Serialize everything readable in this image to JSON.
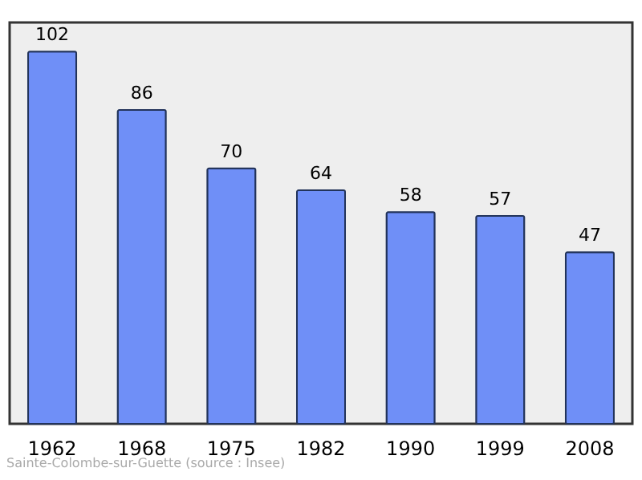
{
  "chart_data": {
    "type": "bar",
    "categories": [
      "1962",
      "1968",
      "1975",
      "1982",
      "1990",
      "1999",
      "2008"
    ],
    "values": [
      102,
      86,
      70,
      64,
      58,
      57,
      47
    ],
    "color": "#6f8ff7",
    "data_labels": true,
    "annotations": [
      "Sainte-Colombe-sur-Guette",
      "(source : Insee)"
    ]
  }
}
